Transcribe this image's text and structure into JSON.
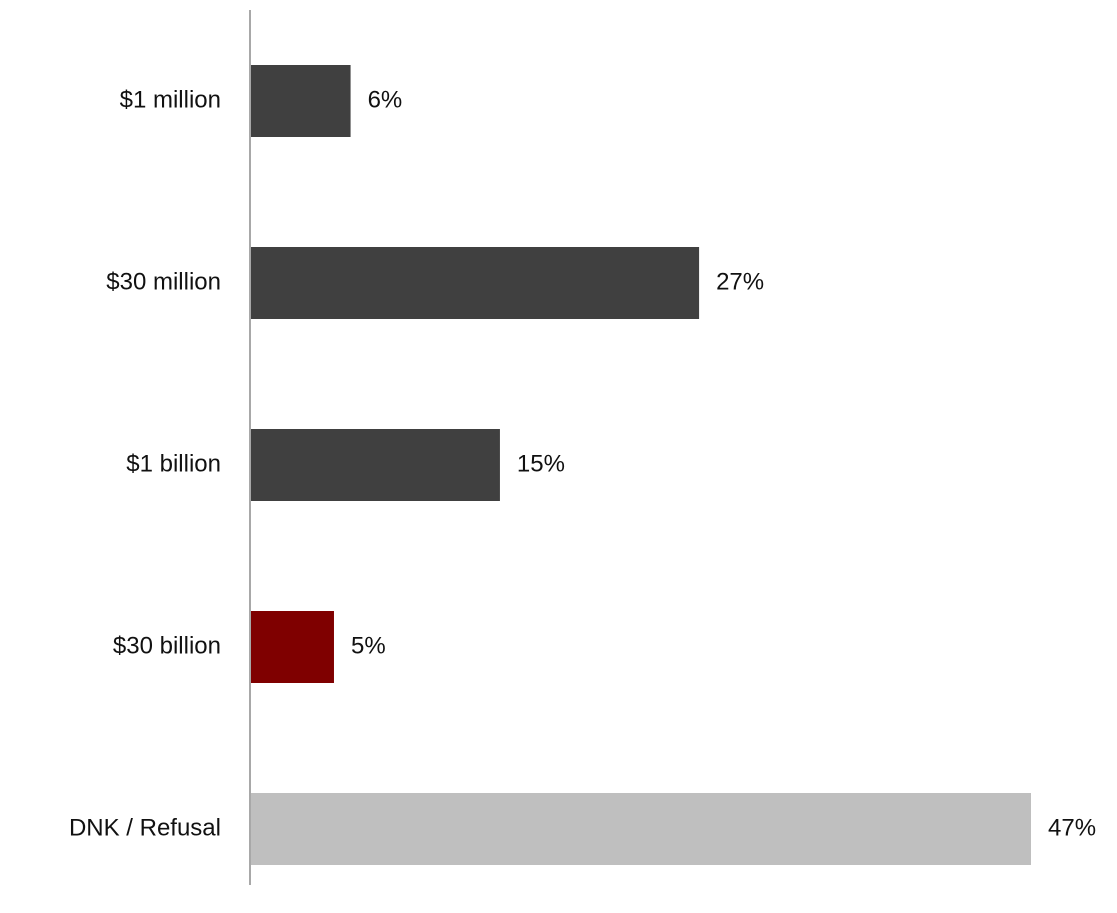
{
  "chart_data": {
    "type": "bar",
    "orientation": "horizontal",
    "categories": [
      "$1 million",
      "$30 million",
      "$1 billion",
      "$30 billion",
      "DNK / Refusal"
    ],
    "values": [
      6,
      27,
      15,
      5,
      47
    ],
    "value_labels": [
      "6%",
      "27%",
      "15%",
      "5%",
      "47%"
    ],
    "colors": [
      "#404040",
      "#404040",
      "#404040",
      "#7f0000",
      "#bfbfbf"
    ],
    "axis_color": "#8c8c8c",
    "xlim": [
      0,
      47
    ],
    "grid": false,
    "legend": "none",
    "title": "",
    "xlabel": "",
    "ylabel": ""
  }
}
